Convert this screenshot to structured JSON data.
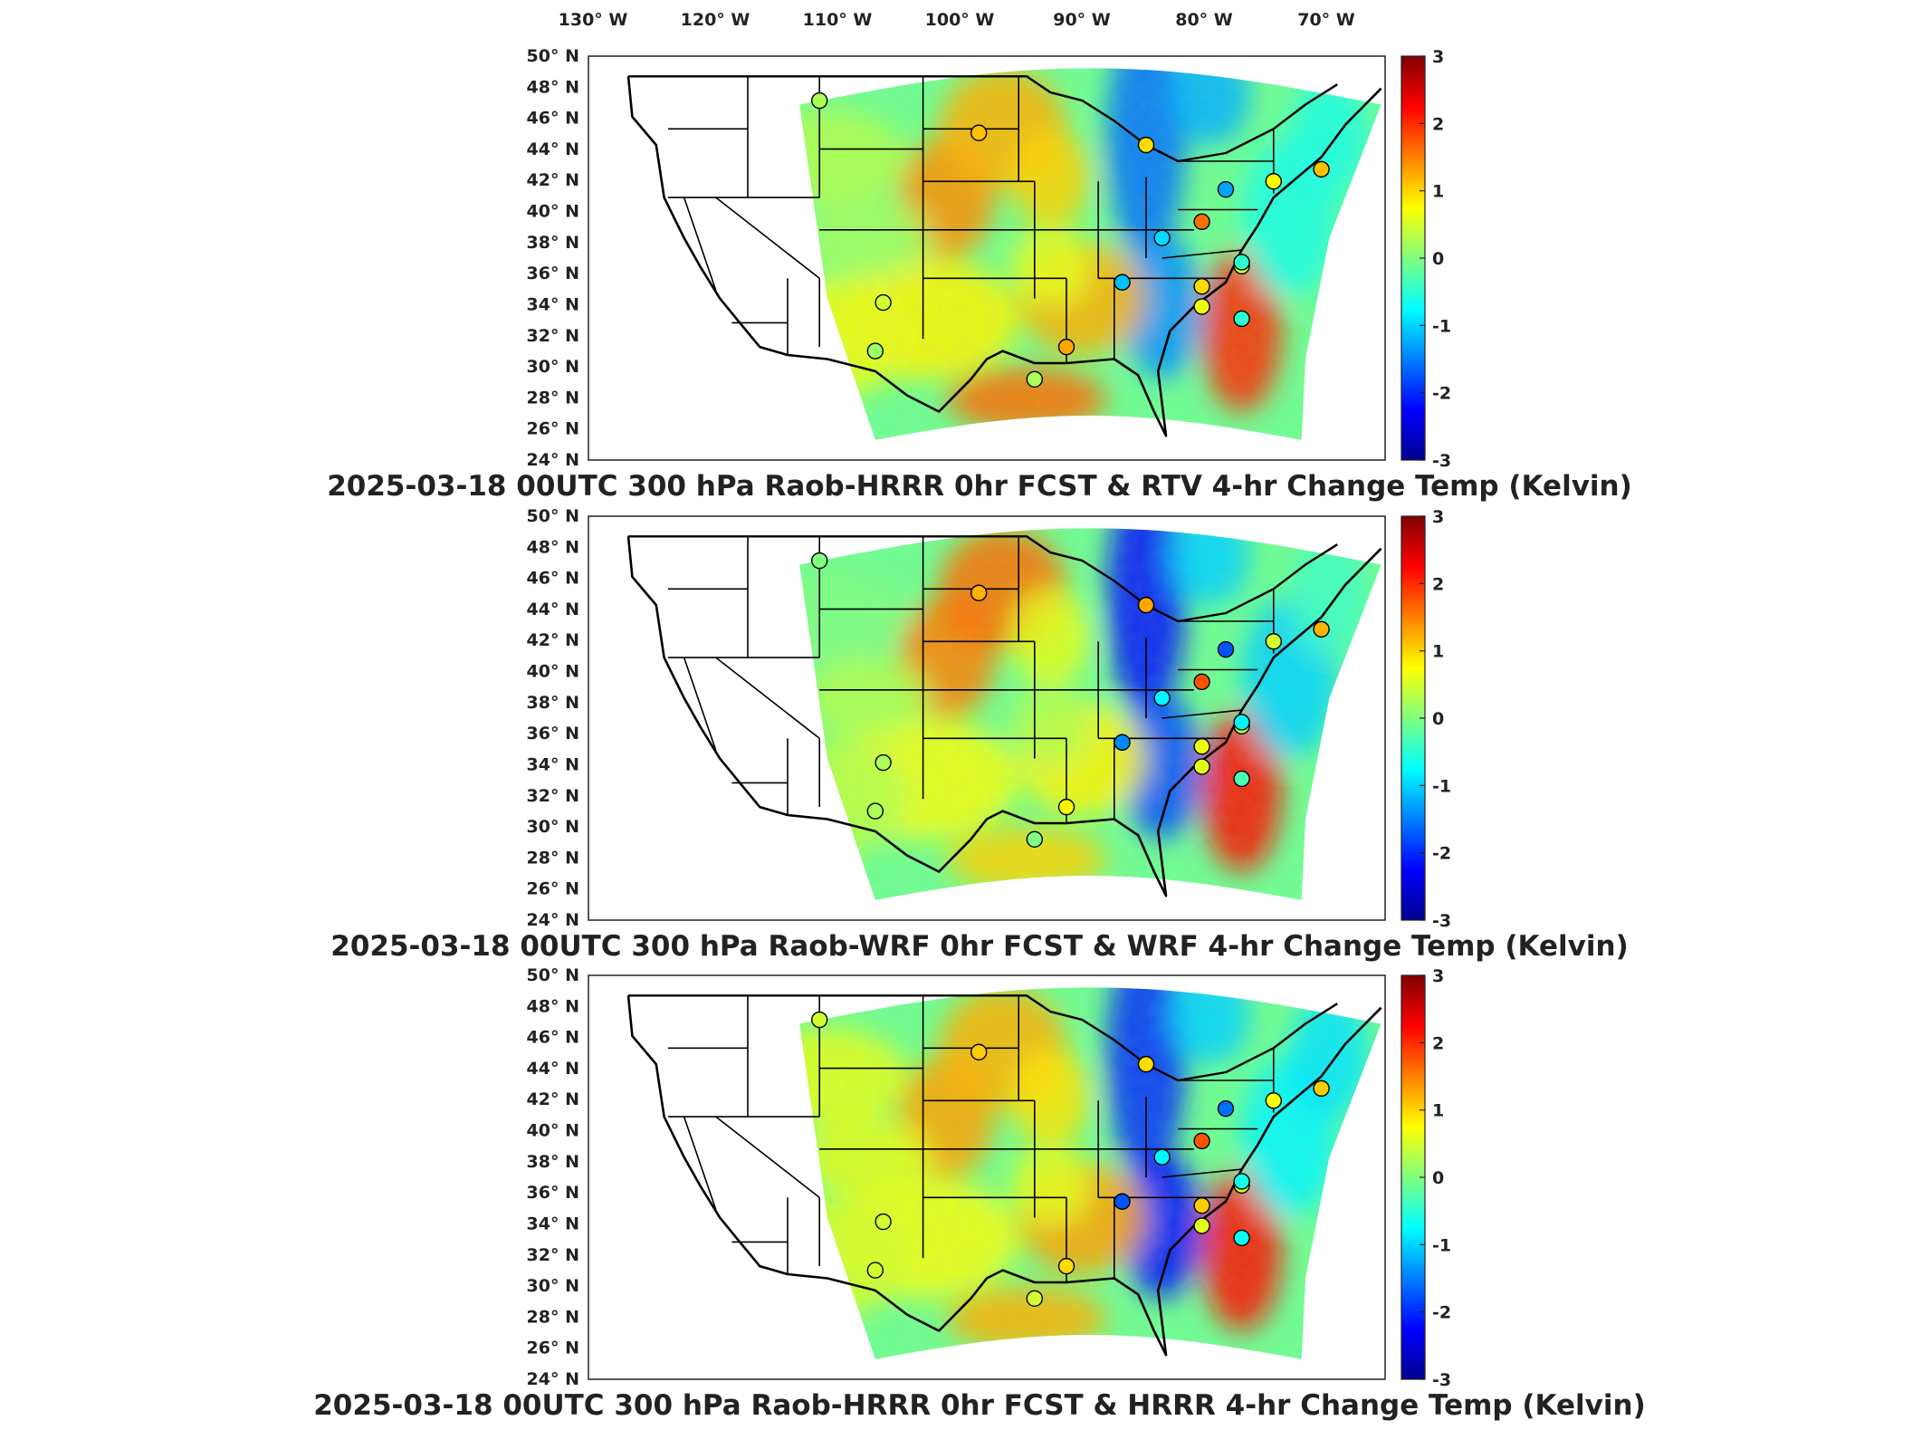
{
  "figure": {
    "top_axis_labels": [
      "130° W",
      "120° W",
      "110° W",
      "100° W",
      "90° W",
      "80° W",
      "70° W"
    ],
    "lat_labels": [
      "50° N",
      "48° N",
      "46° N",
      "44° N",
      "42° N",
      "40° N",
      "38° N",
      "36° N",
      "34° N",
      "32° N",
      "30° N",
      "28° N",
      "26° N",
      "24° N"
    ],
    "panels": [
      {
        "title": "2025-03-18 00UTC 300 hPa Raob-HRRR 0hr FCST & RTV 4-hr Change Temp (Kelvin)",
        "variant": 0
      },
      {
        "title": "2025-03-18 00UTC 300 hPa Raob-WRF 0hr FCST & WRF 4-hr Change Temp (Kelvin)",
        "variant": 1
      },
      {
        "title": "2025-03-18 00UTC 300 hPa Raob-HRRR 0hr FCST & HRRR 4-hr Change Temp (Kelvin)",
        "variant": 2
      }
    ],
    "colorbar": {
      "ticks": [
        "3",
        "2",
        "1",
        "0",
        "-1",
        "-2",
        "-3"
      ],
      "range": [
        -3,
        3
      ],
      "colormap": "jet"
    }
  },
  "colors": {
    "jet_stops": [
      "#00008f",
      "#0000ff",
      "#00ffff",
      "#80ff80",
      "#ffff00",
      "#ff0000",
      "#800000"
    ],
    "state_lines": "#000000",
    "axes_frame": "#222222"
  }
}
